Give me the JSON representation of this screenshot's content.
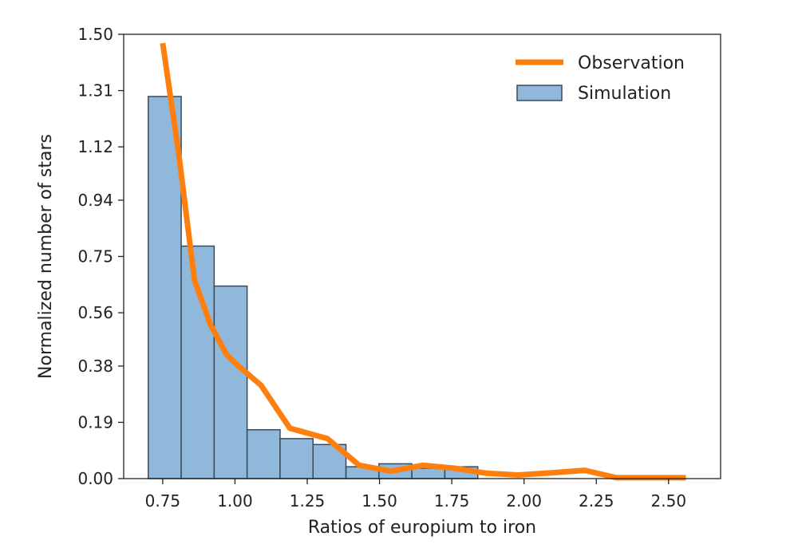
{
  "chart_data": {
    "type": "bar",
    "xlabel": "Ratios of europium to iron",
    "ylabel": "Normalized number of stars",
    "xlim": [
      0.615,
      2.68
    ],
    "ylim": [
      0.0,
      1.5
    ],
    "xticks": [
      0.75,
      1.0,
      1.25,
      1.5,
      1.75,
      2.0,
      2.25,
      2.5
    ],
    "xtick_labels": [
      "0.75",
      "1.00",
      "1.25",
      "1.50",
      "1.75",
      "2.00",
      "2.25",
      "2.50"
    ],
    "yticks": [
      0.0,
      0.19,
      0.38,
      0.56,
      0.75,
      0.94,
      1.12,
      1.31,
      1.5
    ],
    "ytick_labels": [
      "0.00",
      "0.19",
      "0.38",
      "0.56",
      "0.75",
      "0.94",
      "1.12",
      "1.31",
      "1.50"
    ],
    "grid": false,
    "legend_position": "top-right",
    "series": [
      {
        "name": "Simulation",
        "kind": "histogram",
        "color": "#8fb8da",
        "edge_color": "#3a4a5a",
        "bins": [
          {
            "x0": 0.7,
            "x1": 0.814,
            "value": 1.29
          },
          {
            "x0": 0.814,
            "x1": 0.928,
            "value": 0.785
          },
          {
            "x0": 0.928,
            "x1": 1.042,
            "value": 0.65
          },
          {
            "x0": 1.042,
            "x1": 1.156,
            "value": 0.165
          },
          {
            "x0": 1.156,
            "x1": 1.27,
            "value": 0.135
          },
          {
            "x0": 1.27,
            "x1": 1.384,
            "value": 0.115
          },
          {
            "x0": 1.384,
            "x1": 1.498,
            "value": 0.04
          },
          {
            "x0": 1.498,
            "x1": 1.612,
            "value": 0.05
          },
          {
            "x0": 1.612,
            "x1": 1.726,
            "value": 0.035
          },
          {
            "x0": 1.726,
            "x1": 1.84,
            "value": 0.04
          }
        ]
      },
      {
        "name": "Observation",
        "kind": "line",
        "color": "#ff7f0e",
        "x": [
          0.75,
          0.805,
          0.86,
          0.915,
          0.97,
          1.0,
          1.09,
          1.19,
          1.32,
          1.43,
          1.54,
          1.65,
          1.76,
          1.87,
          1.98,
          2.1,
          2.21,
          2.32,
          2.45,
          2.56
        ],
        "y": [
          1.47,
          1.1,
          0.67,
          0.52,
          0.42,
          0.39,
          0.315,
          0.17,
          0.135,
          0.045,
          0.025,
          0.045,
          0.035,
          0.018,
          0.012,
          0.02,
          0.028,
          0.003,
          0.003,
          0.003
        ]
      }
    ]
  }
}
